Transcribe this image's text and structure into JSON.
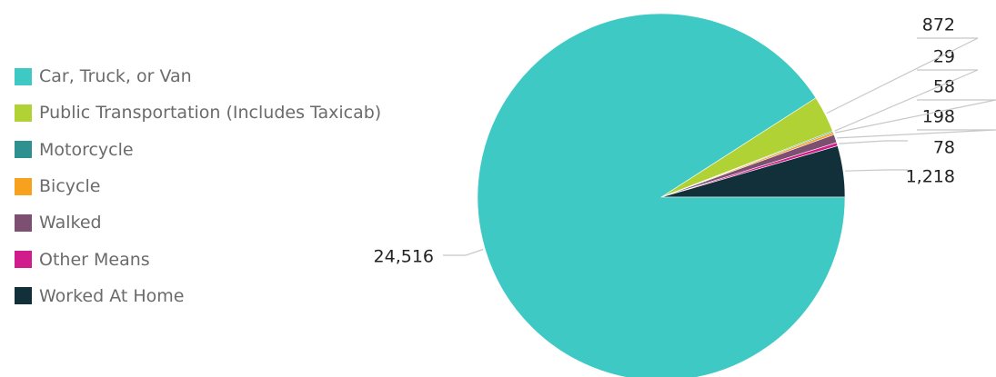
{
  "chart_data": {
    "type": "pie",
    "title": "",
    "categories": [
      "Car, Truck, or Van",
      "Public Transportation (Includes Taxicab)",
      "Motorcycle",
      "Bicycle",
      "Walked",
      "Other Means",
      "Worked At Home"
    ],
    "values": [
      24516,
      872,
      29,
      58,
      198,
      78,
      1218
    ],
    "value_labels": [
      "24,516",
      "872",
      "29",
      "58",
      "198",
      "78",
      "1,218"
    ],
    "colors": [
      "#3ec9c5",
      "#b0d235",
      "#2f9090",
      "#f8a11e",
      "#7d4f70",
      "#d11d8b",
      "#12303a"
    ],
    "legend_position": "left"
  }
}
